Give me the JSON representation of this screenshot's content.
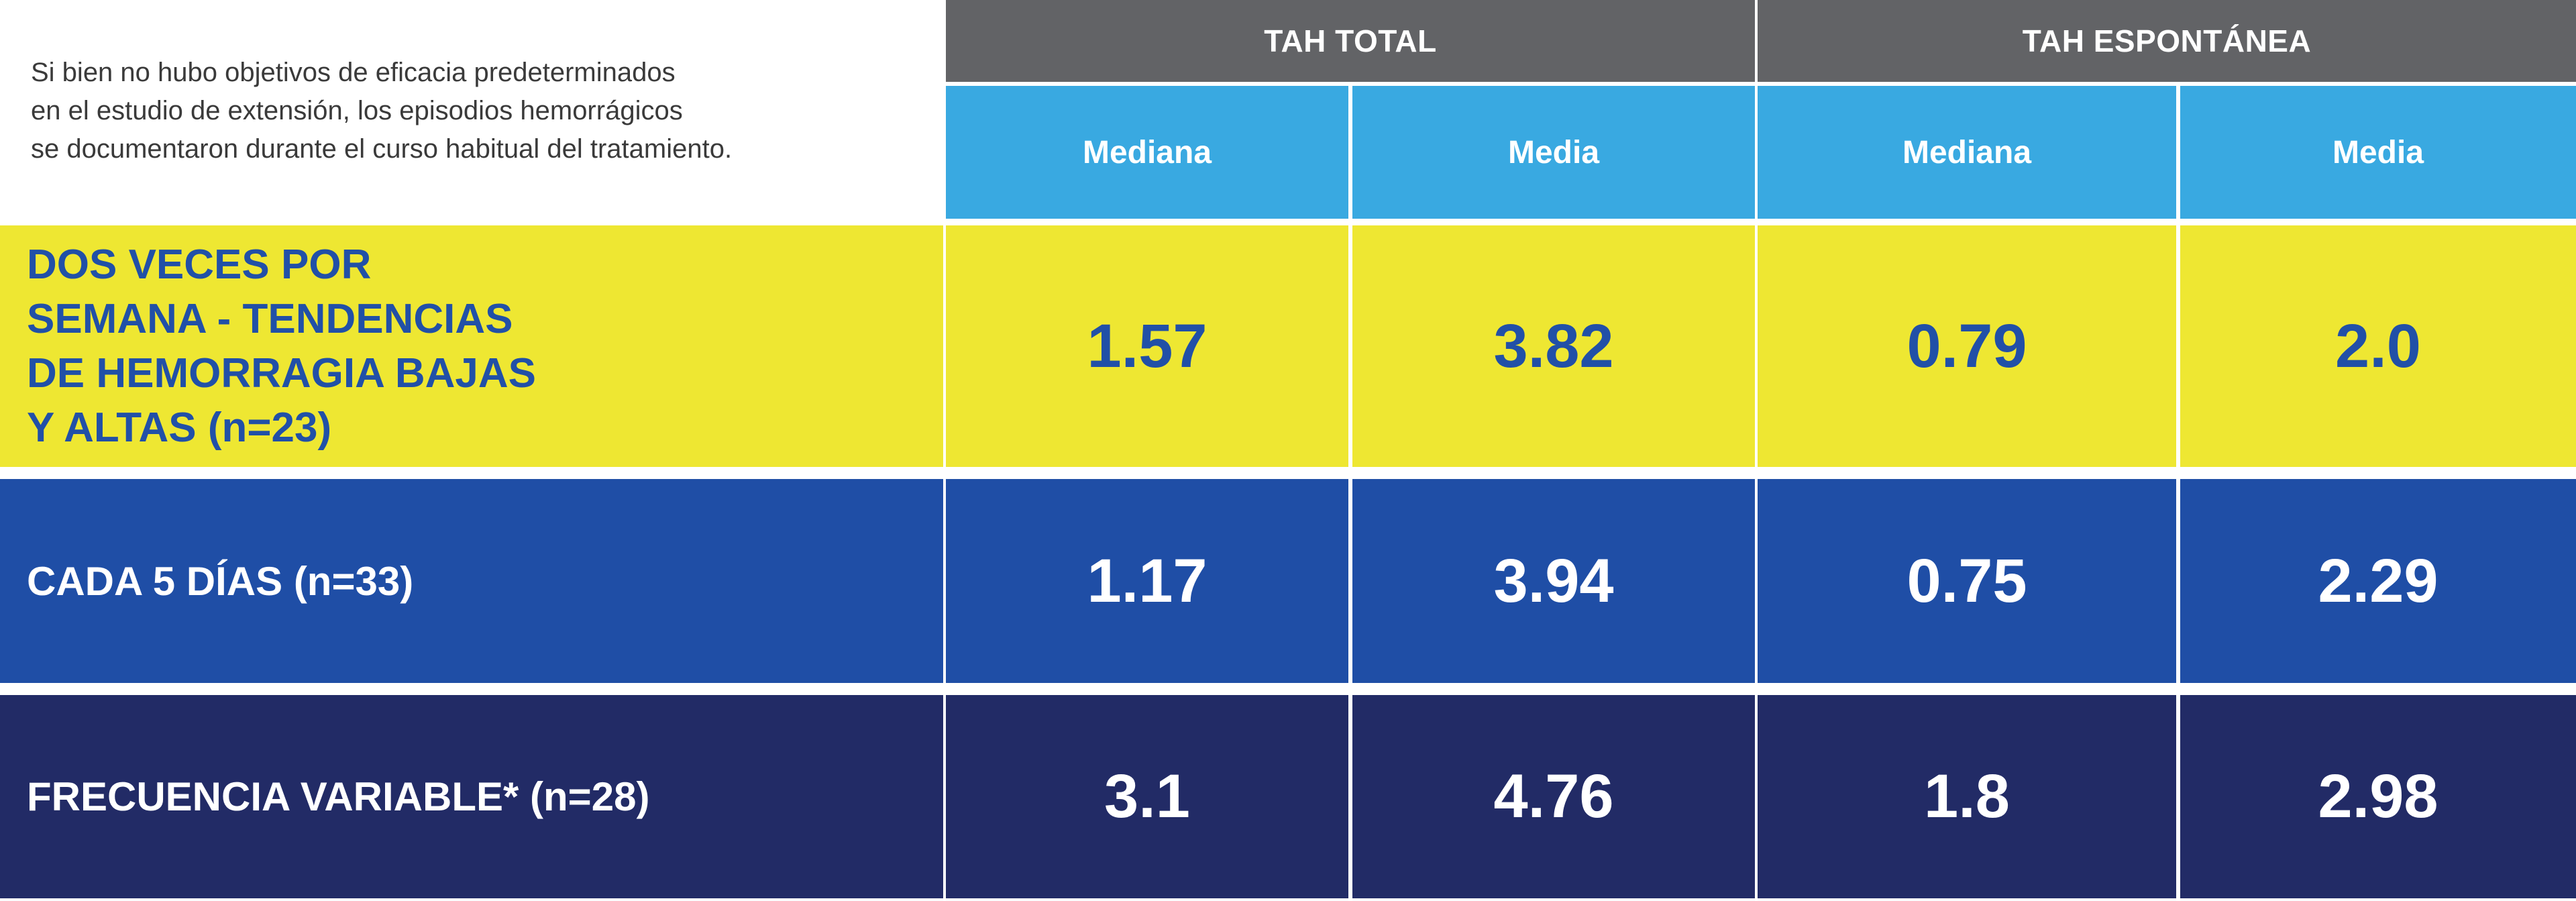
{
  "intro_note": "Si bien no hubo objetivos de eficacia predeterminados\nen el estudio de extensión, los episodios hemorrágicos\nse documentaron durante el curso habitual del tratamiento.",
  "colors": {
    "header_gray": "#626366",
    "subheader_blue": "#39a9e1",
    "row_yellow": "#eee732",
    "row_blue": "#1f4ea6",
    "row_navy": "#222b66",
    "text_blue": "#2150a7"
  },
  "chart_data": {
    "type": "table",
    "column_groups": [
      {
        "name": "TAH TOTAL",
        "columns": [
          "Mediana",
          "Media"
        ]
      },
      {
        "name": "TAH ESPONTÁNEA",
        "columns": [
          "Mediana",
          "Media"
        ]
      }
    ],
    "rows": [
      {
        "label": "DOS VECES POR\nSEMANA - TENDENCIAS\nDE HEMORRAGIA BAJAS\nY ALTAS (n=23)",
        "values": [
          "1.57",
          "3.82",
          "0.79",
          "2.0"
        ]
      },
      {
        "label": "CADA 5 DÍAS (n=33)",
        "values": [
          "1.17",
          "3.94",
          "0.75",
          "2.29"
        ]
      },
      {
        "label": "FRECUENCIA VARIABLE* (n=28)",
        "values": [
          "3.1",
          "4.76",
          "1.8",
          "2.98"
        ]
      }
    ]
  }
}
